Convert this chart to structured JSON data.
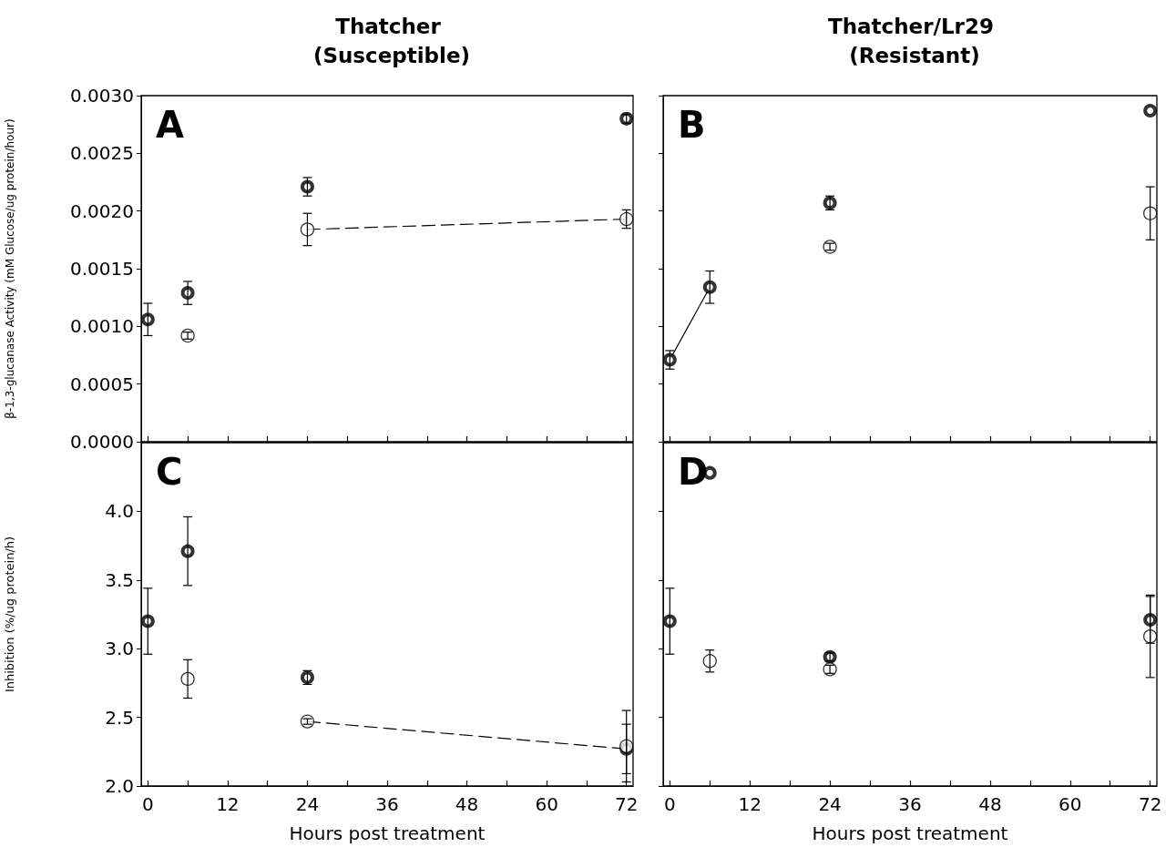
{
  "chart_data": [
    {
      "type": "scatter",
      "title": "Thatcher (Susceptible)",
      "ylabel": "β-1,3-glucanase Activity (mM Glucose/ug protein/hour)",
      "annotations": [
        "A"
      ],
      "tick_labels": "y",
      "x": [
        0,
        6,
        24,
        72
      ],
      "xlim": [
        -1,
        73
      ],
      "xticks": [
        0,
        {
          "value": 6,
          "label": null
        },
        12,
        {
          "value": 18,
          "label": null
        },
        24,
        {
          "value": 30,
          "label": null
        },
        36,
        {
          "value": 42,
          "label": null
        },
        48,
        {
          "value": 54,
          "label": null
        },
        60,
        {
          "value": 66,
          "label": null
        },
        72
      ],
      "ylim": [
        0,
        0.003
      ],
      "yticks": [
        {
          "value": 0,
          "label": "0.0000"
        },
        0.0005,
        {
          "value": 0.001,
          "label": "0.0010"
        },
        0.0015,
        {
          "value": 0.002,
          "label": "0.0020"
        },
        0.0025,
        {
          "value": 0.003,
          "label": "0.0030"
        }
      ],
      "series": [
        {
          "color": "#000000",
          "marker": "circle",
          "values": [
            0.00106,
            0.00129,
            0.00221,
            0.0028
          ],
          "errors": [
            0.00014,
            0.0001,
            8e-05,
            4e-05
          ]
        },
        {
          "color": "#000000",
          "marker": "circle",
          "values": [
            null,
            0.00092,
            0.00184,
            0.00193
          ],
          "errors": [
            null,
            3e-05,
            0.00014,
            8e-05
          ]
        },
        {
          "type": "line",
          "color": "#000000",
          "marker": "none",
          "line_style": "dashed",
          "x": [
            24,
            72
          ],
          "values": [
            0.00184,
            0.00193
          ]
        }
      ]
    },
    {
      "type": "scatter",
      "title": "Thatcher/Lr29 (Resistant)",
      "annotations": [
        "B"
      ],
      "tick_labels": false,
      "x": [
        0,
        6,
        24,
        72
      ],
      "xlim": [
        -1,
        73
      ],
      "xticks": [
        0,
        {
          "value": 6,
          "label": null
        },
        12,
        {
          "value": 18,
          "label": null
        },
        24,
        {
          "value": 30,
          "label": null
        },
        36,
        {
          "value": 42,
          "label": null
        },
        48,
        {
          "value": 54,
          "label": null
        },
        60,
        {
          "value": 66,
          "label": null
        },
        72
      ],
      "ylim": [
        0,
        0.003
      ],
      "yticks": [
        0,
        0.0005,
        0.001,
        0.0015,
        0.002,
        0.0025,
        0.003
      ],
      "series": [
        {
          "color": "#000000",
          "marker": "circle",
          "values": [
            0.00071,
            0.00134,
            0.00207,
            0.00287
          ],
          "errors": [
            8e-05,
            0.00014,
            6e-05,
            null
          ]
        },
        {
          "color": "#000000",
          "marker": "circle",
          "values": [
            null,
            null,
            0.00169,
            0.00198
          ],
          "errors": [
            null,
            null,
            3e-05,
            0.00023
          ]
        },
        {
          "type": "line",
          "color": "#000000",
          "marker": "none",
          "line_style": "solid",
          "x": [
            0,
            6
          ],
          "values": [
            0.00071,
            0.00134
          ]
        }
      ]
    },
    {
      "type": "scatter",
      "xlabel": "Hours post treatment",
      "ylabel": "Inhibition (%/ug protein/h)",
      "annotations": [
        "C"
      ],
      "x": [
        0,
        6,
        24,
        72
      ],
      "xlim": [
        -1,
        73
      ],
      "xticks": [
        0,
        {
          "value": 6,
          "label": null
        },
        12,
        {
          "value": 18,
          "label": null
        },
        24,
        {
          "value": 30,
          "label": null
        },
        36,
        {
          "value": 42,
          "label": null
        },
        48,
        {
          "value": 54,
          "label": null
        },
        60,
        {
          "value": 66,
          "label": null
        },
        72
      ],
      "ylim": [
        2.0,
        4.5
      ],
      "yticks": [
        {
          "value": 2,
          "label": "2.0"
        },
        2.5,
        {
          "value": 3,
          "label": "3.0"
        },
        3.5,
        {
          "value": 4,
          "label": "4.0"
        }
      ],
      "series": [
        {
          "color": "#000000",
          "marker": "circle",
          "values": [
            3.2,
            3.71,
            2.79,
            2.27
          ],
          "errors": [
            0.24,
            0.25,
            0.05,
            0.18
          ]
        },
        {
          "color": "#000000",
          "marker": "circle",
          "values": [
            null,
            2.78,
            2.47,
            2.29
          ],
          "errors": [
            null,
            0.14,
            0.02,
            0.26
          ]
        },
        {
          "type": "line",
          "color": "#000000",
          "marker": "none",
          "line_style": "dashed",
          "x": [
            24,
            72
          ],
          "values": [
            2.47,
            2.27
          ]
        }
      ]
    },
    {
      "type": "scatter",
      "xlabel": "Hours post treatment",
      "annotations": [
        "D"
      ],
      "tick_labels": "x",
      "x": [
        0,
        6,
        24,
        72
      ],
      "xlim": [
        -1,
        73
      ],
      "xticks": [
        0,
        {
          "value": 6,
          "label": null
        },
        12,
        {
          "value": 18,
          "label": null
        },
        24,
        {
          "value": 30,
          "label": null
        },
        36,
        {
          "value": 42,
          "label": null
        },
        48,
        {
          "value": 54,
          "label": null
        },
        60,
        {
          "value": 66,
          "label": null
        },
        72
      ],
      "ylim": [
        2.0,
        4.5
      ],
      "yticks": [
        2,
        2.5,
        3,
        3.5,
        4
      ],
      "series": [
        {
          "color": "#000000",
          "marker": "circle",
          "values": [
            3.2,
            4.28,
            2.94,
            3.21
          ],
          "errors": [
            0.24,
            null,
            0.03,
            0.17
          ]
        },
        {
          "color": "#000000",
          "marker": "circle",
          "values": [
            null,
            2.91,
            2.85,
            3.09
          ],
          "errors": [
            null,
            0.08,
            0.03,
            0.3
          ]
        }
      ]
    }
  ]
}
